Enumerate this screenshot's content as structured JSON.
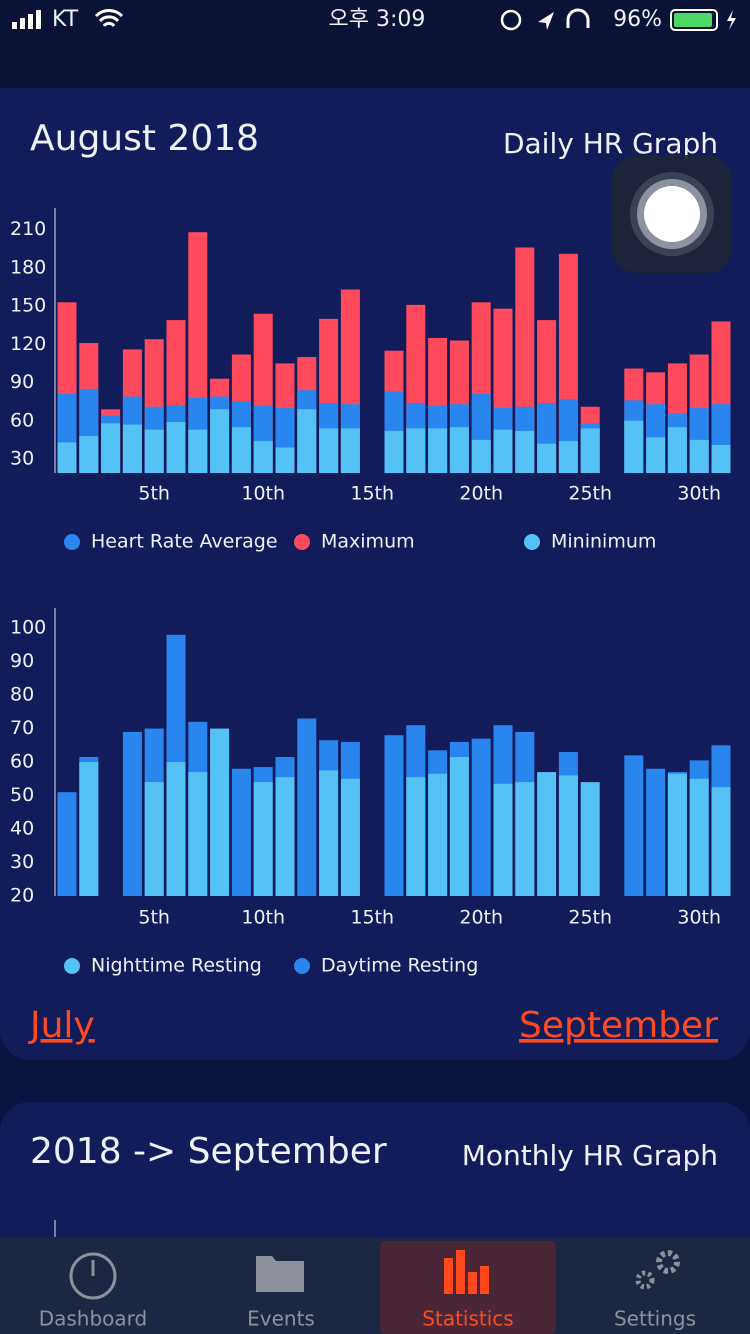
{
  "status_bar": {
    "carrier": "KT",
    "time": "오후 3:09",
    "battery": "96%"
  },
  "chart_data": [
    {
      "type": "bar",
      "title": "August 2018",
      "subtitle": "Daily HR Graph",
      "categories": [
        null,
        null,
        null,
        null,
        "5th",
        null,
        null,
        null,
        null,
        "10th",
        null,
        null,
        null,
        null,
        "15th",
        null,
        null,
        null,
        null,
        "20th",
        null,
        null,
        null,
        null,
        "25th",
        null,
        null,
        null,
        null,
        "30th",
        null
      ],
      "series": [
        {
          "name": "Heart Rate Average",
          "color": "#2a86ef",
          "values": [
            81,
            85,
            64,
            79,
            71,
            72,
            78,
            79,
            75,
            72,
            70,
            84,
            74,
            73,
            null,
            83,
            74,
            72,
            73,
            81,
            70,
            71,
            74,
            77,
            58,
            null,
            76,
            73,
            66,
            70,
            73
          ]
        },
        {
          "name": "Maximum",
          "color": "#ff4a5e",
          "values": [
            153,
            121,
            69,
            116,
            124,
            139,
            208,
            93,
            112,
            144,
            105,
            110,
            140,
            163,
            null,
            115,
            151,
            125,
            123,
            153,
            148,
            196,
            139,
            191,
            71,
            null,
            101,
            98,
            105,
            112,
            138
          ]
        },
        {
          "name": "Mininimum",
          "color": "#55c2f5",
          "values": [
            43,
            48,
            58,
            57,
            53,
            59,
            53,
            69,
            55,
            44,
            39,
            69,
            54,
            54,
            null,
            52,
            54,
            54,
            55,
            45,
            53,
            52,
            42,
            44,
            54,
            null,
            60,
            47,
            55,
            45,
            41
          ]
        }
      ],
      "ylim": [
        19,
        227
      ],
      "yticks": [
        30,
        60,
        90,
        120,
        150,
        180,
        210
      ]
    },
    {
      "type": "bar",
      "categories": [
        null,
        null,
        null,
        null,
        "5th",
        null,
        null,
        null,
        null,
        "10th",
        null,
        null,
        null,
        null,
        "15th",
        null,
        null,
        null,
        null,
        "20th",
        null,
        null,
        null,
        null,
        "25th",
        null,
        null,
        null,
        null,
        "30th",
        null
      ],
      "series": [
        {
          "name": "Nighttime Resting",
          "color": "#55c2f5",
          "values": [
            null,
            60,
            null,
            null,
            54,
            60,
            57,
            70,
            null,
            54,
            55.5,
            null,
            57.5,
            55,
            null,
            null,
            55.5,
            56.5,
            61.5,
            null,
            53.5,
            54,
            57,
            56,
            54,
            null,
            null,
            null,
            56.5,
            55,
            52.5
          ]
        },
        {
          "name": "Daytime Resting",
          "color": "#2a86ef",
          "values": [
            51,
            61.5,
            null,
            69,
            70,
            98,
            72,
            null,
            58,
            58.5,
            61.5,
            73,
            66.5,
            66,
            null,
            68,
            71,
            63.5,
            66,
            67,
            71,
            69,
            null,
            63,
            null,
            null,
            62,
            58,
            57,
            60.5,
            65
          ]
        }
      ],
      "ylim": [
        20,
        106
      ],
      "yticks": [
        20,
        30,
        40,
        50,
        60,
        70,
        80,
        90,
        100
      ]
    }
  ],
  "navigation": {
    "previous": "July",
    "next": "September"
  },
  "monthly_card": {
    "title": "2018 -> September",
    "subtitle": "Monthly HR Graph"
  },
  "tab_bar": {
    "tabs": [
      "Dashboard",
      "Events",
      "Statistics",
      "Settings"
    ],
    "selected": 2
  }
}
